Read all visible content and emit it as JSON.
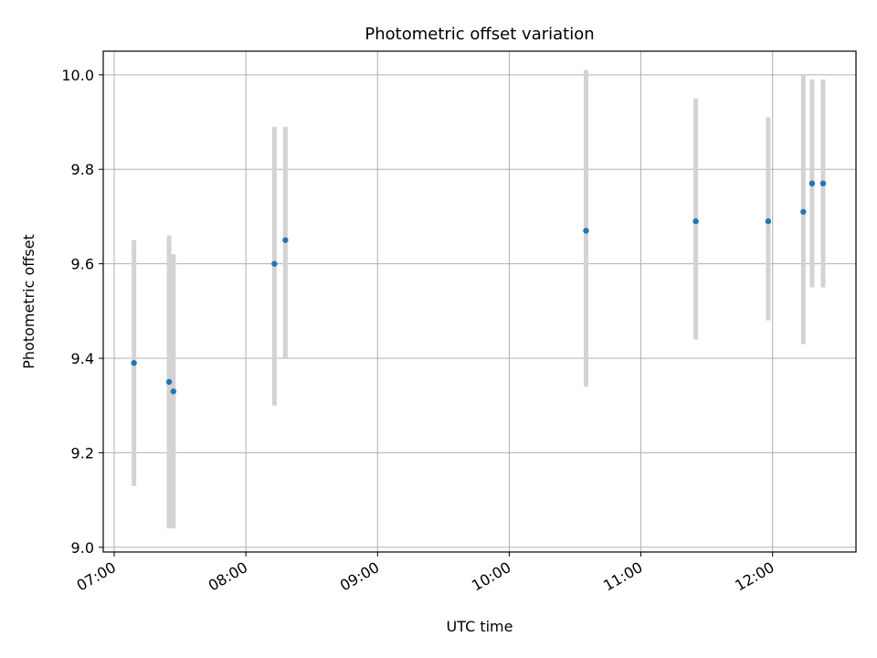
{
  "chart_data": {
    "type": "scatter",
    "title": "Photometric offset variation",
    "xlabel": "UTC time",
    "ylabel": "Photometric offset",
    "x_unit": "hours UTC",
    "xlim": [
      "06:55",
      "12:38"
    ],
    "ylim": [
      8.99,
      10.05
    ],
    "x_ticks": [
      "07:00",
      "08:00",
      "09:00",
      "10:00",
      "11:00",
      "12:00"
    ],
    "y_ticks": [
      "9.0",
      "9.2",
      "9.4",
      "9.6",
      "9.8",
      "10.0"
    ],
    "grid": true,
    "points": [
      {
        "x": "07:09",
        "y": 9.39,
        "yerr_low": 9.13,
        "yerr_high": 9.65
      },
      {
        "x": "07:25",
        "y": 9.35,
        "yerr_low": 9.04,
        "yerr_high": 9.66
      },
      {
        "x": "07:27",
        "y": 9.33,
        "yerr_low": 9.04,
        "yerr_high": 9.62
      },
      {
        "x": "08:13",
        "y": 9.6,
        "yerr_low": 9.3,
        "yerr_high": 9.89
      },
      {
        "x": "08:18",
        "y": 9.65,
        "yerr_low": 9.4,
        "yerr_high": 9.89
      },
      {
        "x": "10:35",
        "y": 9.67,
        "yerr_low": 9.34,
        "yerr_high": 10.01
      },
      {
        "x": "11:25",
        "y": 9.69,
        "yerr_low": 9.44,
        "yerr_high": 9.95
      },
      {
        "x": "11:58",
        "y": 9.69,
        "yerr_low": 9.48,
        "yerr_high": 9.91
      },
      {
        "x": "12:14",
        "y": 9.71,
        "yerr_low": 9.43,
        "yerr_high": 10.0
      },
      {
        "x": "12:18",
        "y": 9.77,
        "yerr_low": 9.55,
        "yerr_high": 9.99
      },
      {
        "x": "12:23",
        "y": 9.77,
        "yerr_low": 9.55,
        "yerr_high": 9.99
      }
    ],
    "colors": {
      "point": "#1f77b4",
      "errorbar": "#d3d3d3",
      "grid": "#b0b0b0",
      "axis": "#000000"
    }
  }
}
